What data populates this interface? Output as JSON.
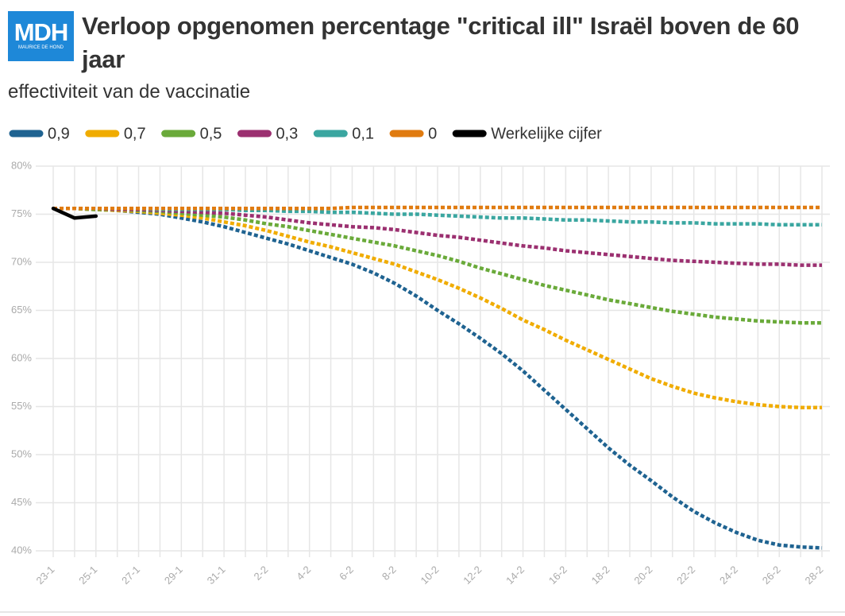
{
  "logo": {
    "text": "MDH",
    "subtext": "MAURICE DE HOND"
  },
  "chart_data": {
    "type": "line",
    "title": "Verloop opgenomen percentage \"critical ill\" Israël boven de 60 jaar",
    "subtitle": "effectiviteit van de vaccinatie",
    "categories": [
      "23-1",
      null,
      "25-1",
      null,
      "27-1",
      null,
      "29-1",
      null,
      "31-1",
      null,
      "2-2",
      null,
      "4-2",
      null,
      "6-2",
      null,
      "8-2",
      null,
      "10-2",
      null,
      "12-2",
      null,
      "14-2",
      null,
      "16-2",
      null,
      "18-2",
      null,
      "20-2",
      null,
      "22-2",
      null,
      "24-2",
      null,
      "26-2",
      null,
      "28-2"
    ],
    "ylim": [
      40,
      80
    ],
    "yticks": [
      {
        "value": 40,
        "label": "40%"
      },
      {
        "value": 45,
        "label": "45%"
      },
      {
        "value": 50,
        "label": "50%"
      },
      {
        "value": 55,
        "label": "55%"
      },
      {
        "value": 60,
        "label": "60%"
      },
      {
        "value": 65,
        "label": "65%"
      },
      {
        "value": 70,
        "label": "70%"
      },
      {
        "value": 75,
        "label": "75%"
      },
      {
        "value": 80,
        "label": "80%"
      }
    ],
    "grid": true,
    "legend": "top",
    "series": [
      {
        "name": "0,9",
        "color": "#1f6391",
        "dashed": true,
        "values": [
          75.6,
          75.6,
          75.5,
          75.4,
          75.2,
          75.0,
          74.6,
          74.2,
          73.7,
          73.1,
          72.5,
          71.9,
          71.2,
          70.5,
          69.8,
          68.9,
          67.8,
          66.5,
          65.0,
          63.6,
          62.1,
          60.5,
          58.7,
          56.7,
          54.7,
          52.7,
          50.7,
          48.9,
          47.3,
          45.6,
          44.1,
          42.9,
          41.9,
          41.1,
          40.6,
          40.4,
          40.3
        ]
      },
      {
        "name": "0,7",
        "color": "#f0ac00",
        "dashed": true,
        "values": [
          75.6,
          75.6,
          75.5,
          75.4,
          75.3,
          75.1,
          74.9,
          74.6,
          74.2,
          73.8,
          73.3,
          72.7,
          72.1,
          71.6,
          71.0,
          70.4,
          69.8,
          69.0,
          68.2,
          67.3,
          66.3,
          65.2,
          64.0,
          63.0,
          61.9,
          60.9,
          59.9,
          58.9,
          57.9,
          57.1,
          56.4,
          55.9,
          55.5,
          55.2,
          55.0,
          54.9,
          54.9
        ]
      },
      {
        "name": "0,5",
        "color": "#6aaa3a",
        "dashed": true,
        "values": [
          75.6,
          75.6,
          75.5,
          75.5,
          75.4,
          75.3,
          75.1,
          74.9,
          74.7,
          74.4,
          74.0,
          73.7,
          73.3,
          72.9,
          72.5,
          72.1,
          71.7,
          71.2,
          70.7,
          70.1,
          69.4,
          68.8,
          68.2,
          67.6,
          67.1,
          66.6,
          66.1,
          65.7,
          65.3,
          64.9,
          64.6,
          64.3,
          64.1,
          63.9,
          63.8,
          63.7,
          63.7
        ]
      },
      {
        "name": "0,3",
        "color": "#9b3070",
        "dashed": true,
        "values": [
          75.6,
          75.6,
          75.6,
          75.5,
          75.5,
          75.4,
          75.3,
          75.2,
          75.1,
          74.9,
          74.7,
          74.4,
          74.1,
          73.9,
          73.7,
          73.6,
          73.4,
          73.1,
          72.8,
          72.6,
          72.3,
          72.0,
          71.7,
          71.5,
          71.2,
          71.0,
          70.8,
          70.6,
          70.4,
          70.2,
          70.1,
          70.0,
          69.9,
          69.8,
          69.8,
          69.7,
          69.7
        ]
      },
      {
        "name": "0,1",
        "color": "#3aa6a0",
        "dashed": true,
        "values": [
          75.6,
          75.6,
          75.6,
          75.6,
          75.6,
          75.5,
          75.5,
          75.5,
          75.5,
          75.4,
          75.4,
          75.3,
          75.3,
          75.2,
          75.2,
          75.1,
          75.0,
          75.0,
          74.9,
          74.8,
          74.7,
          74.6,
          74.6,
          74.5,
          74.4,
          74.4,
          74.3,
          74.2,
          74.2,
          74.1,
          74.1,
          74.0,
          74.0,
          74.0,
          73.9,
          73.9,
          73.9
        ]
      },
      {
        "name": "0",
        "color": "#e07b10",
        "dashed": true,
        "values": [
          75.6,
          75.6,
          75.6,
          75.6,
          75.6,
          75.6,
          75.6,
          75.6,
          75.6,
          75.6,
          75.6,
          75.6,
          75.6,
          75.6,
          75.7,
          75.7,
          75.7,
          75.7,
          75.7,
          75.7,
          75.7,
          75.7,
          75.7,
          75.7,
          75.7,
          75.7,
          75.7,
          75.7,
          75.7,
          75.7,
          75.7,
          75.7,
          75.7,
          75.7,
          75.7,
          75.7,
          75.7
        ]
      },
      {
        "name": "Werkelijke cijfer",
        "color": "#000000",
        "dashed": false,
        "values": [
          75.6,
          74.6,
          74.8,
          null,
          null,
          null,
          null,
          null,
          null,
          null,
          null,
          null,
          null,
          null,
          null,
          null,
          null,
          null,
          null,
          null,
          null,
          null,
          null,
          null,
          null,
          null,
          null,
          null,
          null,
          null,
          null,
          null,
          null,
          null,
          null,
          null,
          null
        ]
      }
    ]
  }
}
